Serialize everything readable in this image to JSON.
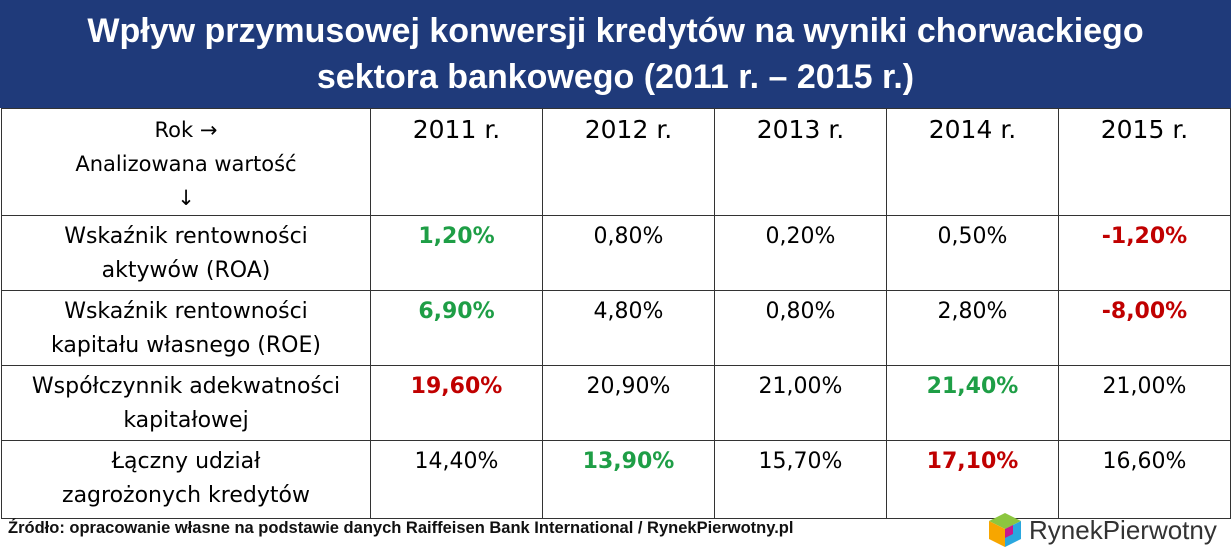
{
  "title": {
    "line1": "Wpływ przymusowej konwersji kredytów na wyniki chorwackiego",
    "line2": "sektora bankowego (2011 r. – 2015 r.)"
  },
  "table": {
    "corner": {
      "line1": "Rok →",
      "line2": "Analizowana wartość",
      "line3": "↓"
    },
    "years": [
      "2011 r.",
      "2012 r.",
      "2013 r.",
      "2014 r.",
      "2015 r."
    ],
    "rows": [
      {
        "label_line1": "Wskaźnik rentowności",
        "label_line2": "aktywów (ROA)",
        "values": [
          "1,20%",
          "0,80%",
          "0,20%",
          "0,50%",
          "-1,20%"
        ],
        "highlights": [
          "green",
          "",
          "",
          "",
          "red"
        ]
      },
      {
        "label_line1": "Wskaźnik rentowności",
        "label_line2": "kapitału własnego (ROE)",
        "values": [
          "6,90%",
          "4,80%",
          "0,80%",
          "2,80%",
          "-8,00%"
        ],
        "highlights": [
          "green",
          "",
          "",
          "",
          "red"
        ]
      },
      {
        "label_line1": "Współczynnik adekwatności",
        "label_line2": "kapitałowej",
        "values": [
          "19,60%",
          "20,90%",
          "21,00%",
          "21,40%",
          "21,00%"
        ],
        "highlights": [
          "red",
          "",
          "",
          "green",
          ""
        ]
      },
      {
        "label_line1": "Łączny udział",
        "label_line2": "zagrożonych kredytów",
        "values": [
          "14,40%",
          "13,90%",
          "15,70%",
          "17,10%",
          "16,60%"
        ],
        "highlights": [
          "",
          "green",
          "",
          "red",
          ""
        ]
      }
    ]
  },
  "source": "Źródło: opracowanie własne na podstawie danych Raiffeisen Bank International / RynekPierwotny.pl",
  "logo": {
    "text_part1": "Rynek",
    "text_part2": "Pierwotny"
  },
  "colors": {
    "title_bg": "#1f3a7a",
    "positive": "#1e9e46",
    "negative": "#c00000"
  }
}
